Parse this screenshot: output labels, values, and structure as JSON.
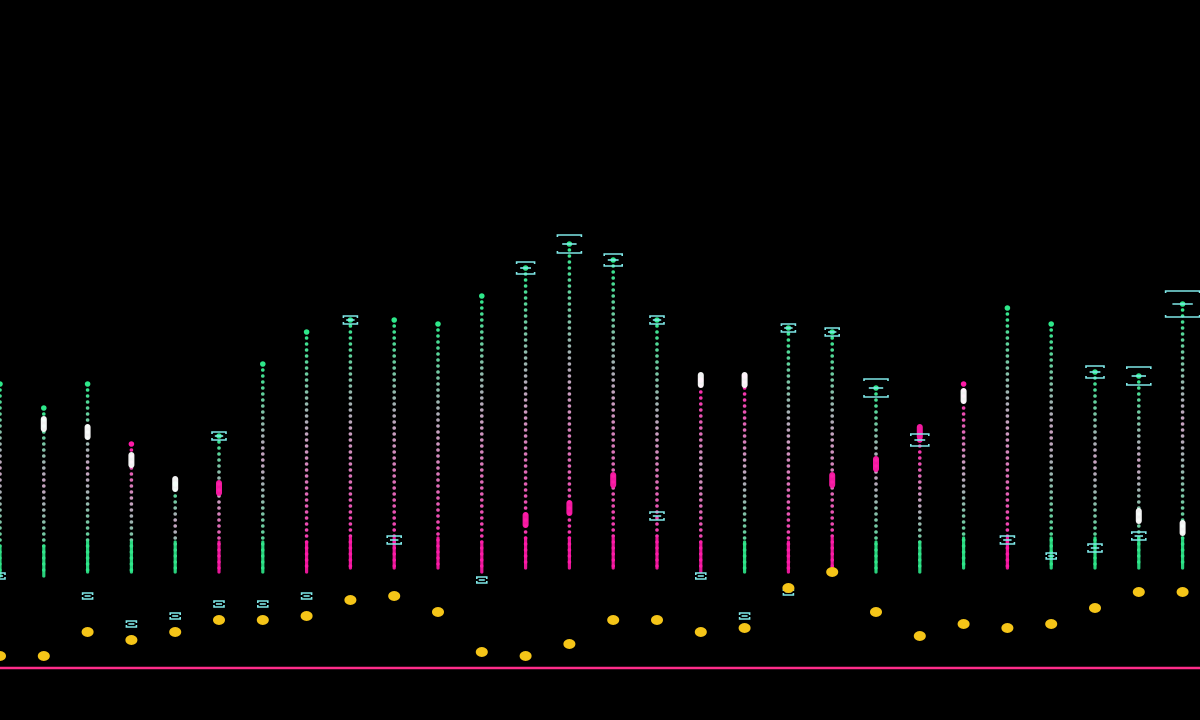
{
  "chart_data": {
    "type": "bar",
    "title": "",
    "xlabel": "",
    "ylabel": "",
    "ylim": [
      0,
      115
    ],
    "grid": false,
    "legend": "none",
    "colors": {
      "background": "#000000",
      "green": "#2ee88a",
      "pink": "#ff1aa8",
      "bracket": "#7fe8e8",
      "dot": "#f5c518",
      "baseline": "#ff2d8a",
      "highlight": "#ffffff"
    },
    "columns": [
      {
        "top": 71,
        "bottom": 23,
        "dot": 3,
        "marker": 23,
        "cap": null,
        "highlight": null,
        "top_color": "green",
        "bottom_color": "green"
      },
      {
        "top": 65,
        "bottom": 23,
        "dot": 3,
        "marker": null,
        "cap": null,
        "highlight": 61,
        "top_color": "green",
        "bottom_color": "green"
      },
      {
        "top": 71,
        "bottom": 24,
        "dot": 9,
        "marker": 18,
        "cap": null,
        "highlight": 59,
        "top_color": "green",
        "bottom_color": "green"
      },
      {
        "top": 56,
        "bottom": 24,
        "dot": 7,
        "marker": 11,
        "cap": null,
        "highlight": 52,
        "top_color": "pink",
        "bottom_color": "green"
      },
      {
        "top": 46,
        "bottom": 24,
        "dot": 9,
        "marker": 13,
        "cap": null,
        "highlight": 46,
        "top_color": "green",
        "bottom_color": "green"
      },
      {
        "top": 58,
        "bottom": 24,
        "dot": 12,
        "marker": 16,
        "cap": "small",
        "highlight": 45,
        "top_color": "green",
        "bottom_color": "pink"
      },
      {
        "top": 76,
        "bottom": 24,
        "dot": 12,
        "marker": 16,
        "cap": null,
        "highlight": null,
        "top_color": "green",
        "bottom_color": "green"
      },
      {
        "top": 84,
        "bottom": 24,
        "dot": 13,
        "marker": 18,
        "cap": null,
        "highlight": null,
        "top_color": "green",
        "bottom_color": "pink"
      },
      {
        "top": 87,
        "bottom": 25,
        "dot": 17,
        "marker": null,
        "cap": "small",
        "highlight": null,
        "top_color": "green",
        "bottom_color": "pink"
      },
      {
        "top": 87,
        "bottom": 25,
        "dot": 18,
        "marker": 32,
        "cap": null,
        "highlight": null,
        "top_color": "green",
        "bottom_color": "pink"
      },
      {
        "top": 86,
        "bottom": 25,
        "dot": 14,
        "marker": null,
        "cap": null,
        "highlight": null,
        "top_color": "green",
        "bottom_color": "pink"
      },
      {
        "top": 93,
        "bottom": 24,
        "dot": 4,
        "marker": 22,
        "cap": null,
        "highlight": null,
        "top_color": "green",
        "bottom_color": "pink"
      },
      {
        "top": 100,
        "bottom": 25,
        "dot": 3,
        "marker": null,
        "cap": "medium",
        "highlight": 37,
        "top_color": "green",
        "bottom_color": "pink"
      },
      {
        "top": 106,
        "bottom": 25,
        "dot": 6,
        "marker": null,
        "cap": "large",
        "highlight": 40,
        "top_color": "green",
        "bottom_color": "pink"
      },
      {
        "top": 102,
        "bottom": 25,
        "dot": 12,
        "marker": null,
        "cap": "medium",
        "highlight": 47,
        "top_color": "green",
        "bottom_color": "pink"
      },
      {
        "top": 87,
        "bottom": 25,
        "dot": 12,
        "marker": 38,
        "cap": "small",
        "highlight": null,
        "top_color": "green",
        "bottom_color": "pink"
      },
      {
        "top": 72,
        "bottom": 24,
        "dot": 9,
        "marker": 23,
        "cap": null,
        "highlight": 72,
        "top_color": "pink",
        "bottom_color": "pink"
      },
      {
        "top": 73,
        "bottom": 24,
        "dot": 10,
        "marker": 13,
        "cap": null,
        "highlight": 72,
        "top_color": "pink",
        "bottom_color": "green"
      },
      {
        "top": 85,
        "bottom": 24,
        "dot": 20,
        "marker": 19,
        "cap": "small",
        "highlight": null,
        "top_color": "green",
        "bottom_color": "pink"
      },
      {
        "top": 84,
        "bottom": 25,
        "dot": 24,
        "marker": null,
        "cap": "small",
        "highlight": 47,
        "top_color": "green",
        "bottom_color": "pink"
      },
      {
        "top": 70,
        "bottom": 24,
        "dot": 14,
        "marker": null,
        "cap": "large",
        "highlight": 51,
        "top_color": "green",
        "bottom_color": "green"
      },
      {
        "top": 57,
        "bottom": 24,
        "dot": 8,
        "marker": null,
        "cap": "medium",
        "highlight": 59,
        "top_color": "pink",
        "bottom_color": "green"
      },
      {
        "top": 71,
        "bottom": 25,
        "dot": 11,
        "marker": null,
        "cap": null,
        "highlight": 68,
        "top_color": "pink",
        "bottom_color": "green"
      },
      {
        "top": 90,
        "bottom": 25,
        "dot": 10,
        "marker": 32,
        "cap": null,
        "highlight": null,
        "top_color": "green",
        "bottom_color": "pink"
      },
      {
        "top": 86,
        "bottom": 25,
        "dot": 11,
        "marker": 28,
        "cap": null,
        "highlight": null,
        "top_color": "green",
        "bottom_color": "green"
      },
      {
        "top": 74,
        "bottom": 25,
        "dot": 15,
        "marker": 30,
        "cap": "medium",
        "highlight": null,
        "top_color": "green",
        "bottom_color": "green"
      },
      {
        "top": 73,
        "bottom": 25,
        "dot": 19,
        "marker": 33,
        "cap": "large",
        "highlight": 38,
        "top_color": "green",
        "bottom_color": "green"
      },
      {
        "top": 91,
        "bottom": 25,
        "dot": 19,
        "marker": null,
        "cap": "xlarge",
        "highlight": 35,
        "top_color": "green",
        "bottom_color": "green"
      }
    ]
  }
}
